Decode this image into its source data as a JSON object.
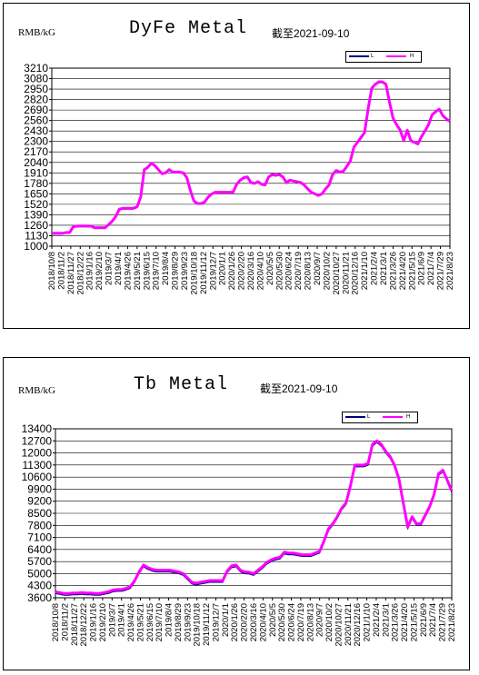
{
  "colors": {
    "line_dark": "#000080",
    "line_main": "#ff00ff"
  },
  "chart_data": [
    {
      "type": "line",
      "title": "DyFe Metal",
      "subtitle": "截至2021-09-10",
      "ylabel": "RMB/kG",
      "xlabel": "",
      "legend": {
        "placement": "top-right",
        "entries": [
          "L",
          "H"
        ]
      },
      "grid": true,
      "ylim": [
        1000,
        3210
      ],
      "yticks": [
        1000,
        1130,
        1260,
        1390,
        1520,
        1650,
        1780,
        1910,
        2040,
        2170,
        2300,
        2430,
        2560,
        2690,
        2820,
        2950,
        3080,
        3210
      ],
      "xticks": [
        "2018/10/8",
        "2018/11/2",
        "2018/11/27",
        "2018/12/22",
        "2019/1/16",
        "2019/2/10",
        "2019/3/7",
        "2019/4/1",
        "2019/4/26",
        "2019/5/21",
        "2019/6/15",
        "2019/7/10",
        "2019/8/4",
        "2019/8/29",
        "2019/9/23",
        "2019/10/18",
        "2019/11/12",
        "2019/12/7",
        "2020/1/1",
        "2020/1/26",
        "2020/2/20",
        "2020/3/16",
        "2020/4/10",
        "2020/5/5",
        "2020/5/30",
        "2020/6/24",
        "2020/7/19",
        "2020/8/13",
        "2020/9/7",
        "2020/10/2",
        "2020/10/27",
        "2020/11/21",
        "2020/12/16",
        "2021/1/10",
        "2021/2/4",
        "2021/3/1",
        "2021/3/26",
        "2021/4/20",
        "2021/5/15",
        "2021/6/9",
        "2021/7/4",
        "2021/7/29",
        "2021/8/23"
      ],
      "series": [
        {
          "name": "L",
          "values": [
            1150,
            1150,
            1150,
            1150,
            1160,
            1160,
            1230,
            1240,
            1240,
            1240,
            1240,
            1240,
            1220,
            1220,
            1220,
            1220,
            1260,
            1300,
            1360,
            1450,
            1460,
            1460,
            1460,
            1460,
            1480,
            1600,
            1940,
            1970,
            2020,
            1990,
            1940,
            1890,
            1900,
            1940,
            1910,
            1910,
            1910,
            1900,
            1840,
            1680,
            1550,
            1520,
            1520,
            1540,
            1600,
            1640,
            1660,
            1660,
            1660,
            1660,
            1660,
            1660,
            1760,
            1810,
            1840,
            1850,
            1780,
            1770,
            1790,
            1760,
            1750,
            1850,
            1880,
            1870,
            1880,
            1850,
            1780,
            1810,
            1800,
            1790,
            1780,
            1750,
            1700,
            1660,
            1640,
            1620,
            1640,
            1700,
            1750,
            1880,
            1930,
            1910,
            1920,
            1980,
            2050,
            2220,
            2280,
            2340,
            2400,
            2700,
            2950,
            3000,
            3030,
            3030,
            3000,
            2780,
            2580,
            2500,
            2430,
            2300,
            2430,
            2300,
            2280,
            2260,
            2350,
            2420,
            2500,
            2620,
            2660,
            2690,
            2610,
            2570,
            2540
          ]
        },
        {
          "name": "H",
          "values": [
            1160,
            1160,
            1160,
            1160,
            1170,
            1170,
            1240,
            1250,
            1250,
            1250,
            1250,
            1250,
            1230,
            1230,
            1230,
            1230,
            1270,
            1310,
            1370,
            1460,
            1470,
            1470,
            1470,
            1470,
            1490,
            1610,
            1950,
            1980,
            2030,
            2000,
            1950,
            1900,
            1910,
            1950,
            1920,
            1920,
            1920,
            1910,
            1850,
            1690,
            1560,
            1530,
            1530,
            1550,
            1610,
            1650,
            1670,
            1670,
            1670,
            1670,
            1670,
            1670,
            1770,
            1820,
            1850,
            1860,
            1790,
            1780,
            1800,
            1770,
            1760,
            1860,
            1890,
            1880,
            1890,
            1860,
            1790,
            1820,
            1810,
            1800,
            1790,
            1760,
            1710,
            1670,
            1650,
            1630,
            1650,
            1710,
            1760,
            1890,
            1940,
            1920,
            1930,
            1990,
            2060,
            2230,
            2290,
            2350,
            2410,
            2710,
            2960,
            3010,
            3040,
            3040,
            3010,
            2790,
            2590,
            2510,
            2440,
            2310,
            2440,
            2310,
            2290,
            2270,
            2360,
            2430,
            2510,
            2630,
            2670,
            2700,
            2620,
            2580,
            2550
          ]
        }
      ]
    },
    {
      "type": "line",
      "title": "Tb Metal",
      "subtitle": "截至2021-09-10",
      "ylabel": "RMB/kG",
      "xlabel": "",
      "legend": {
        "placement": "top-right",
        "entries": [
          "L",
          "H"
        ]
      },
      "grid": true,
      "ylim": [
        3600,
        13400
      ],
      "yticks": [
        3600,
        4300,
        5000,
        5700,
        6400,
        7100,
        7800,
        8500,
        9200,
        9900,
        10600,
        11300,
        12000,
        12700,
        13400
      ],
      "xticks": [
        "2018/10/8",
        "2018/11/2",
        "2018/11/27",
        "2018/12/22",
        "2019/1/16",
        "2019/2/10",
        "2019/3/7",
        "2019/4/1",
        "2019/4/26",
        "2019/5/21",
        "2019/6/15",
        "2019/7/10",
        "2019/8/4",
        "2019/8/29",
        "2019/9/23",
        "2019/10/18",
        "2019/11/12",
        "2019/12/7",
        "2020/1/1",
        "2020/1/26",
        "2020/2/20",
        "2020/3/16",
        "2020/4/10",
        "2020/5/5",
        "2020/5/30",
        "2020/6/24",
        "2020/7/19",
        "2020/8/13",
        "2020/9/7",
        "2020/10/2",
        "2020/10/27",
        "2020/11/21",
        "2020/12/16",
        "2021/1/10",
        "2021/2/4",
        "2021/3/1",
        "2021/3/26",
        "2021/4/20",
        "2021/5/15",
        "2021/6/9",
        "2021/7/4",
        "2021/7/29",
        "2021/8/23"
      ],
      "series": [
        {
          "name": "L",
          "values": [
            3850,
            3800,
            3750,
            3750,
            3780,
            3780,
            3800,
            3780,
            3780,
            3750,
            3750,
            3800,
            3850,
            3950,
            3980,
            3980,
            4050,
            4150,
            4500,
            5000,
            5400,
            5250,
            5150,
            5100,
            5100,
            5100,
            5100,
            5050,
            5000,
            4900,
            4650,
            4400,
            4350,
            4400,
            4450,
            4500,
            4500,
            4500,
            4500,
            5050,
            5350,
            5400,
            5100,
            5000,
            4980,
            4900,
            5100,
            5300,
            5550,
            5700,
            5800,
            5850,
            6150,
            6100,
            6100,
            6050,
            6000,
            6000,
            6000,
            6100,
            6200,
            6800,
            7500,
            7800,
            8200,
            8700,
            9000,
            10000,
            11200,
            11200,
            11200,
            11300,
            12400,
            12600,
            12400,
            12000,
            11700,
            11200,
            10400,
            9000,
            7600,
            8200,
            7800,
            7800,
            8300,
            8800,
            9500,
            10700,
            10900,
            10300,
            9700
          ]
        },
        {
          "name": "H",
          "values": [
            3950,
            3900,
            3850,
            3850,
            3880,
            3880,
            3900,
            3880,
            3880,
            3850,
            3850,
            3900,
            3950,
            4050,
            4080,
            4080,
            4150,
            4250,
            4600,
            5100,
            5500,
            5350,
            5250,
            5200,
            5200,
            5200,
            5200,
            5150,
            5100,
            5000,
            4750,
            4500,
            4450,
            4500,
            4550,
            4600,
            4600,
            4600,
            4600,
            5150,
            5450,
            5500,
            5200,
            5100,
            5080,
            5000,
            5200,
            5400,
            5650,
            5800,
            5900,
            5950,
            6250,
            6200,
            6200,
            6150,
            6100,
            6100,
            6100,
            6200,
            6300,
            6900,
            7600,
            7900,
            8300,
            8800,
            9100,
            10100,
            11300,
            11300,
            11300,
            11400,
            12500,
            12700,
            12500,
            12100,
            11800,
            11300,
            10500,
            9100,
            7700,
            8300,
            7900,
            7900,
            8400,
            8900,
            9600,
            10800,
            11000,
            10400,
            9800
          ]
        }
      ]
    }
  ]
}
